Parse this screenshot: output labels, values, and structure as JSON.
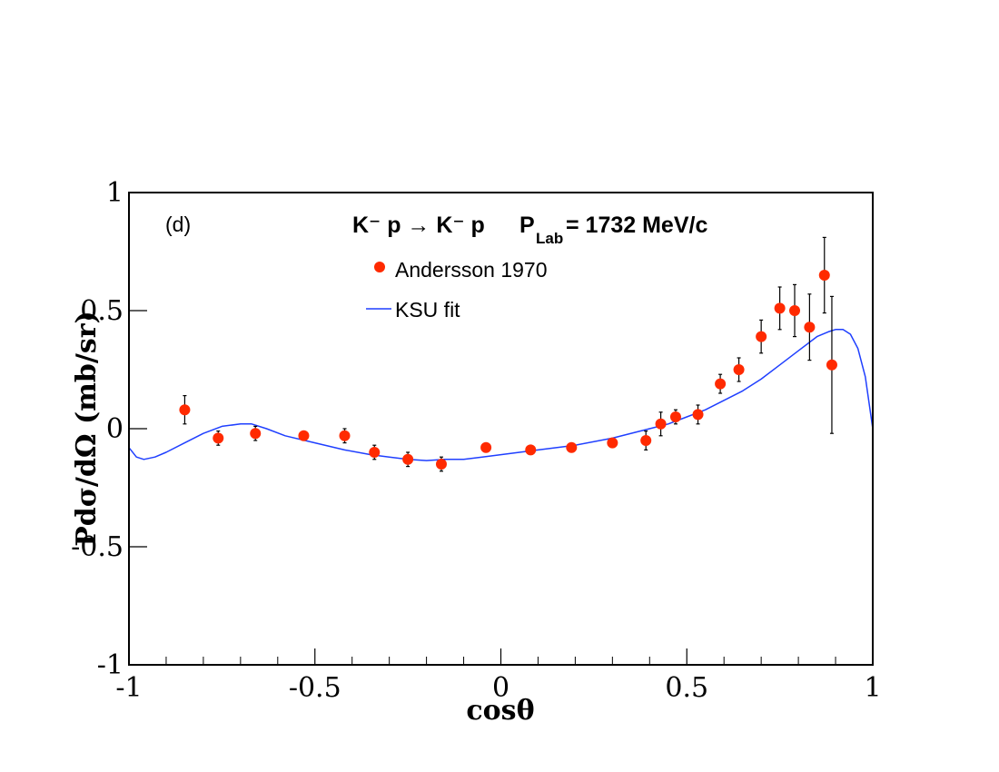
{
  "chart_data": {
    "type": "scatter",
    "panel_label": "(d)",
    "reaction": "K⁻ p → K⁻ p",
    "beam": {
      "symbol": "P",
      "subscript": "Lab",
      "value_text": "= 1732 MeV/c"
    },
    "xlabel": "cosθ",
    "ylabel": "Pdσ/dΩ (mb/sr)",
    "xlim": [
      -1,
      1
    ],
    "ylim": [
      -1,
      1
    ],
    "x_ticks": [
      -1,
      -0.5,
      0,
      0.5,
      1
    ],
    "y_ticks": [
      -1,
      -0.5,
      0,
      0.5,
      1
    ],
    "x_tick_labels": [
      "-1",
      "-0.5",
      "0",
      "0.5",
      "1"
    ],
    "y_tick_labels": [
      "-1",
      "-0.5",
      "0",
      "0.5",
      "1"
    ],
    "legend": [
      {
        "label": "Andersson 1970",
        "kind": "marker",
        "color": "#ff2a00"
      },
      {
        "label": "KSU fit",
        "kind": "line",
        "color": "#1f3fff"
      }
    ],
    "series": [
      {
        "name": "Andersson 1970",
        "kind": "points",
        "color": "#ff2a00",
        "x": [
          -0.85,
          -0.76,
          -0.66,
          -0.53,
          -0.42,
          -0.34,
          -0.25,
          -0.16,
          -0.04,
          0.08,
          0.19,
          0.3,
          0.39,
          0.43,
          0.47,
          0.53,
          0.59,
          0.64,
          0.7,
          0.75,
          0.79,
          0.83,
          0.87,
          0.89
        ],
        "y": [
          0.08,
          -0.04,
          -0.02,
          -0.03,
          -0.03,
          -0.1,
          -0.13,
          -0.15,
          -0.08,
          -0.09,
          -0.08,
          -0.06,
          -0.05,
          0.02,
          0.05,
          0.06,
          0.19,
          0.25,
          0.39,
          0.51,
          0.5,
          0.43,
          0.65,
          0.27
        ],
        "err": [
          0.06,
          0.03,
          0.03,
          0.01,
          0.03,
          0.03,
          0.03,
          0.03,
          0.01,
          0.01,
          0.01,
          0.01,
          0.04,
          0.05,
          0.03,
          0.04,
          0.04,
          0.05,
          0.07,
          0.09,
          0.11,
          0.14,
          0.16,
          0.29
        ]
      },
      {
        "name": "KSU fit",
        "kind": "line",
        "color": "#1f3fff",
        "x": [
          -1.0,
          -0.98,
          -0.96,
          -0.93,
          -0.9,
          -0.85,
          -0.8,
          -0.75,
          -0.7,
          -0.67,
          -0.63,
          -0.58,
          -0.5,
          -0.42,
          -0.35,
          -0.3,
          -0.25,
          -0.2,
          -0.15,
          -0.1,
          -0.05,
          0.0,
          0.05,
          0.1,
          0.2,
          0.3,
          0.4,
          0.45,
          0.5,
          0.55,
          0.6,
          0.65,
          0.7,
          0.75,
          0.8,
          0.85,
          0.88,
          0.9,
          0.92,
          0.94,
          0.96,
          0.98,
          1.0
        ],
        "y": [
          -0.08,
          -0.12,
          -0.13,
          -0.12,
          -0.1,
          -0.06,
          -0.02,
          0.01,
          0.02,
          0.02,
          0.0,
          -0.03,
          -0.06,
          -0.09,
          -0.11,
          -0.12,
          -0.13,
          -0.135,
          -0.13,
          -0.13,
          -0.12,
          -0.11,
          -0.1,
          -0.09,
          -0.07,
          -0.04,
          0.0,
          0.02,
          0.05,
          0.08,
          0.12,
          0.16,
          0.21,
          0.27,
          0.33,
          0.39,
          0.41,
          0.42,
          0.42,
          0.4,
          0.34,
          0.22,
          0.0
        ]
      }
    ]
  }
}
